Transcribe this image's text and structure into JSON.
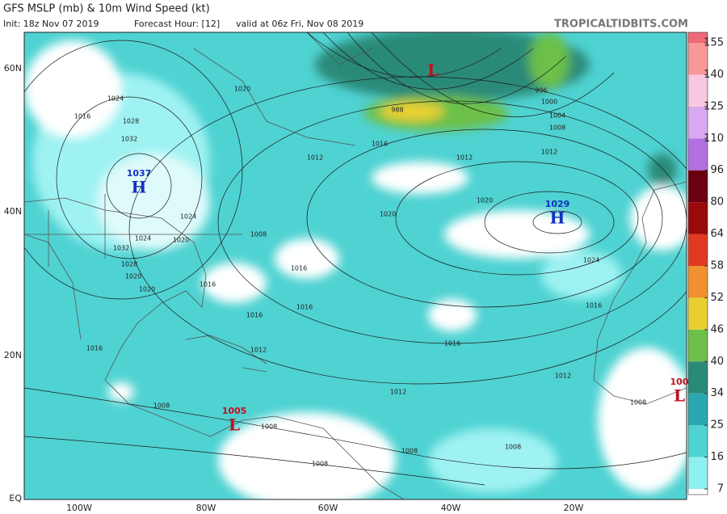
{
  "header": {
    "title": "GFS MSLP (mb) & 10m Wind Speed (kt)",
    "init": "Init: 18z Nov 07 2019",
    "forecast_hour": "Forecast Hour: [12]",
    "valid": "valid at 06z Fri, Nov 08 2019",
    "credit": "TROPICALTIDBITS.COM"
  },
  "map": {
    "lat_labels": [
      "60N",
      "40N",
      "20N",
      "EQ"
    ],
    "lon_labels": [
      "100W",
      "80W",
      "60W",
      "40W",
      "20W"
    ],
    "centers": [
      {
        "value": "1037",
        "letter": "H",
        "color": "#1030c0"
      },
      {
        "value": "1029",
        "letter": "H",
        "color": "#1030c0"
      },
      {
        "value": "1005",
        "letter": "L",
        "color": "#c01020"
      },
      {
        "value": "100",
        "letter": "L",
        "color": "#c01020"
      },
      {
        "letter": "L",
        "color": "#c01020"
      }
    ],
    "isobar_labels": [
      "1024",
      "1028",
      "1032",
      "1016",
      "1020",
      "1012",
      "1020",
      "1024",
      "1020",
      "1024",
      "1020",
      "1032",
      "1028",
      "1020",
      "1016",
      "1016",
      "1016",
      "1016",
      "1012",
      "1016",
      "1016",
      "1012",
      "1012",
      "1008",
      "1008",
      "1008",
      "1008",
      "1008",
      "1008",
      "1008",
      "1012",
      "1020",
      "1024",
      "1004",
      "1008",
      "1012",
      "996",
      "1000",
      "988",
      "1016",
      "1016"
    ]
  },
  "colorbar": {
    "ticks": [
      7,
      16,
      25,
      34,
      40,
      46,
      52,
      58,
      64,
      80,
      96,
      110,
      125,
      140,
      155
    ],
    "colors": [
      "#8ff0f0",
      "#4fd2d2",
      "#2aa8b0",
      "#2a8a78",
      "#6cc048",
      "#e8d030",
      "#f09030",
      "#e03a20",
      "#9a0a0a",
      "#6a0010",
      "#b070e0",
      "#d8a8f0",
      "#f8c8e0",
      "#f89898",
      "#f06878"
    ]
  }
}
